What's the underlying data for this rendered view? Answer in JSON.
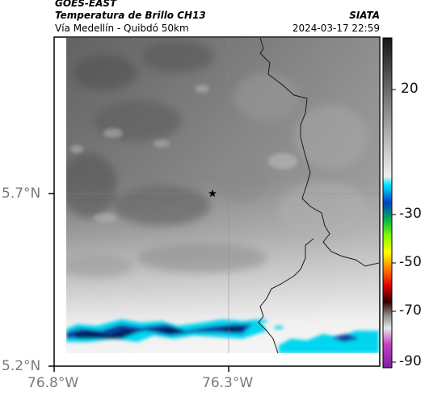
{
  "header": {
    "satellite": "GOES-EAST",
    "product": "Temperatura de Brillo CH13",
    "region": "Vía Medellín - Quibdó 50km",
    "org": "SIATA",
    "timestamp": "2024-03-17 22:59"
  },
  "axes": {
    "lat_ticks": [
      "5.7°N",
      "5.2°N"
    ],
    "lon_ticks": [
      "76.8°W",
      "76.3°W"
    ]
  },
  "colorbar": {
    "tick_labels": [
      "20",
      "-30",
      "-50",
      "-70",
      "-90"
    ]
  },
  "map": {
    "marker": "star-icon",
    "colors": {
      "dark_gray": "#5f5f5f",
      "light_gray": "#e8e8e8",
      "cold_cyan": "#00d6f0",
      "cold_blue": "#0a3fa0",
      "cold_navy": "#06205f",
      "border": "#1a1a1a"
    }
  }
}
